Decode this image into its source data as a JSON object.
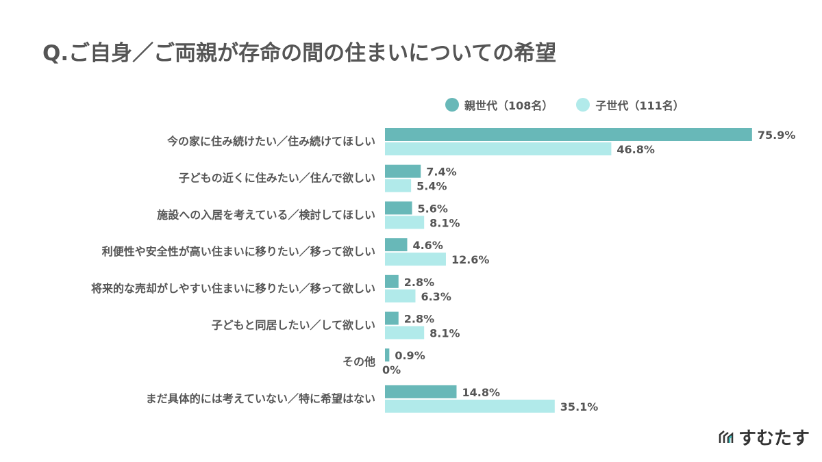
{
  "chart_data": {
    "type": "bar",
    "orientation": "horizontal",
    "title": "Q.ご自身／ご両親が存命の間の住まいについての希望",
    "categories": [
      "今の家に住み続けたい／住み続けてほしい",
      "子どもの近くに住みたい／住んで欲しい",
      "施設への入居を考えている／検討してほしい",
      "利便性や安全性が高い住まいに移りたい／移って欲しい",
      "将来的な売却がしやすい住まいに移りたい／移って欲しい",
      "子どもと同居したい／して欲しい",
      "その他",
      "まだ具体的には考えていない／特に希望はない"
    ],
    "series": [
      {
        "name": "親世代（108名）",
        "color": "#68b8b8",
        "values": [
          75.9,
          7.4,
          5.6,
          4.6,
          2.8,
          2.8,
          0.9,
          14.8
        ],
        "labels": [
          "75.9%",
          "7.4%",
          "5.6%",
          "4.6%",
          "2.8%",
          "2.8%",
          "0.9%",
          "14.8%"
        ]
      },
      {
        "name": "子世代（111名）",
        "color": "#b1eaea",
        "values": [
          46.8,
          5.4,
          8.1,
          12.6,
          6.3,
          8.1,
          0,
          35.1
        ],
        "labels": [
          "46.8%",
          "5.4%",
          "8.1%",
          "12.6%",
          "6.3%",
          "8.1%",
          "0%",
          "35.1%"
        ]
      }
    ],
    "xlim": [
      0,
      80
    ],
    "grid": false,
    "legend": "top-right"
  },
  "logo": {
    "text": "すむたす"
  }
}
